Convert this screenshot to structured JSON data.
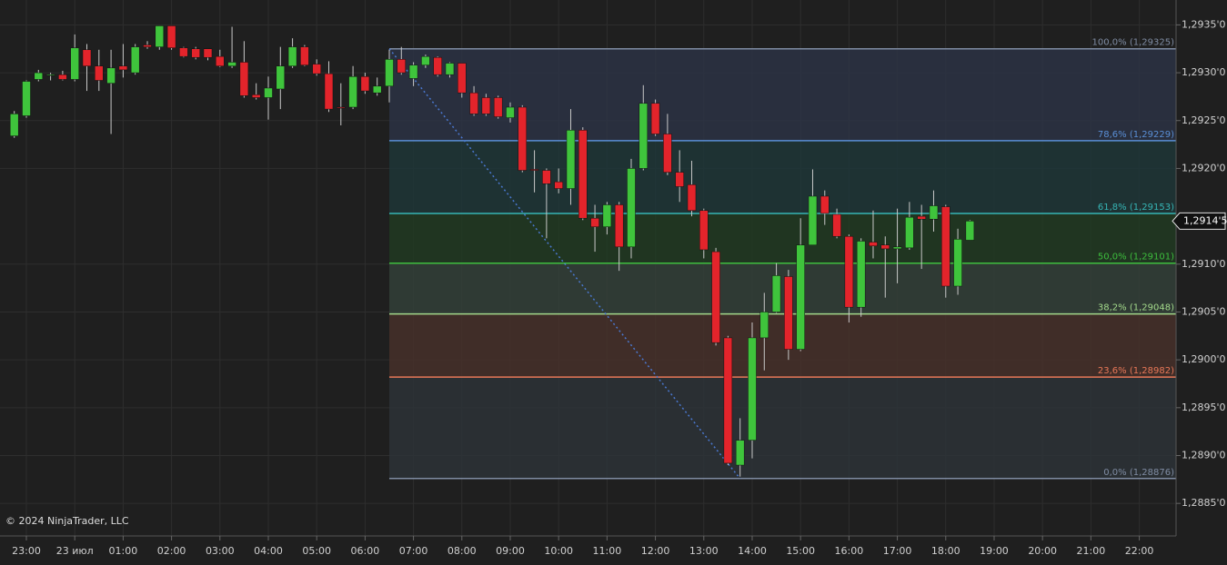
{
  "chart_data": {
    "type": "candlestick",
    "watermark": "© 2024 NinjaTrader, LLC",
    "x": [
      22.75,
      23,
      23.25,
      23.5,
      23.75,
      24,
      24.25,
      24.5,
      24.75,
      25,
      25.25,
      25.5,
      25.75,
      26,
      26.25,
      26.5,
      26.75,
      27,
      27.25,
      27.5,
      27.75,
      28,
      28.25,
      28.5,
      28.75,
      29,
      29.25,
      29.5,
      29.75,
      30,
      30.25,
      30.5,
      30.75,
      31,
      31.25,
      31.5,
      31.75,
      32,
      32.25,
      32.5,
      32.75,
      33,
      33.25,
      33.5,
      33.75,
      34,
      34.25,
      34.5,
      34.75,
      35,
      35.25,
      35.5,
      35.75,
      36,
      36.25,
      36.5,
      36.75,
      37,
      37.25,
      37.5,
      37.75,
      38,
      38.25,
      38.5,
      38.75,
      39,
      39.25,
      39.5,
      39.75,
      40,
      40.25,
      40.5,
      40.75,
      41,
      41.25,
      41.5,
      41.75,
      42,
      42.25,
      42.5
    ],
    "open": [
      1.29234,
      1.29255,
      1.29293,
      1.29297,
      1.29298,
      1.29293,
      1.29324,
      1.29307,
      1.29289,
      1.29307,
      1.293,
      1.29329,
      1.29327,
      1.29349,
      1.29326,
      1.29325,
      1.29325,
      1.29317,
      1.29307,
      1.29311,
      1.29277,
      1.29274,
      1.29283,
      1.29307,
      1.29327,
      1.29309,
      1.29299,
      1.29264,
      1.29264,
      1.29296,
      1.29279,
      1.29286,
      1.29314,
      1.29294,
      1.29308,
      1.29316,
      1.29298,
      1.2931,
      1.29279,
      1.29274,
      1.29274,
      1.29253,
      1.29264,
      1.29199,
      1.29198,
      1.29186,
      1.29179,
      1.2924,
      1.29148,
      1.29139,
      1.29162,
      1.29118,
      1.292,
      1.29268,
      1.29236,
      1.29196,
      1.29183,
      1.29156,
      1.29113,
      1.29023,
      1.2889,
      1.28916,
      1.29023,
      1.2905,
      1.29087,
      1.29011,
      1.2912,
      1.29171,
      1.29152,
      1.29129,
      1.29055,
      1.29123,
      1.2912,
      1.29116,
      1.29117,
      1.2915,
      1.29147,
      1.2916,
      1.29077,
      1.29125
    ],
    "high": [
      1.2926,
      1.29292,
      1.29303,
      1.293,
      1.29302,
      1.2934,
      1.2933,
      1.29324,
      1.29324,
      1.2933,
      1.2933,
      1.29333,
      1.29349,
      1.29349,
      1.29327,
      1.29327,
      1.29325,
      1.29324,
      1.29348,
      1.29333,
      1.29289,
      1.29296,
      1.29327,
      1.29336,
      1.29329,
      1.29314,
      1.29312,
      1.29289,
      1.29307,
      1.293,
      1.29295,
      1.29324,
      1.29327,
      1.29311,
      1.29319,
      1.29317,
      1.29311,
      1.2931,
      1.29286,
      1.29278,
      1.29276,
      1.29269,
      1.29266,
      1.29219,
      1.292,
      1.292,
      1.29262,
      1.29243,
      1.29162,
      1.29165,
      1.29165,
      1.2921,
      1.29287,
      1.29272,
      1.29257,
      1.29219,
      1.29208,
      1.29158,
      1.29117,
      1.29025,
      1.28939,
      1.29039,
      1.2907,
      1.29101,
      1.29094,
      1.29148,
      1.29199,
      1.29177,
      1.29158,
      1.29131,
      1.29127,
      1.29156,
      1.29129,
      1.29158,
      1.29165,
      1.29162,
      1.29177,
      1.29162,
      1.29137,
      1.29146
    ],
    "low": [
      1.29232,
      1.29253,
      1.29291,
      1.29292,
      1.29292,
      1.29291,
      1.29281,
      1.29281,
      1.29236,
      1.29295,
      1.29298,
      1.29325,
      1.29324,
      1.29324,
      1.29316,
      1.29314,
      1.29313,
      1.29306,
      1.29305,
      1.29274,
      1.29272,
      1.29251,
      1.29262,
      1.29305,
      1.29307,
      1.29297,
      1.29259,
      1.29245,
      1.29262,
      1.29278,
      1.29276,
      1.29269,
      1.29298,
      1.29286,
      1.29305,
      1.29296,
      1.29295,
      1.29274,
      1.29255,
      1.29255,
      1.29252,
      1.29248,
      1.29196,
      1.29175,
      1.29127,
      1.29174,
      1.29162,
      1.29146,
      1.29113,
      1.29131,
      1.29093,
      1.29106,
      1.29198,
      1.29234,
      1.29193,
      1.29165,
      1.2915,
      1.29106,
      1.29015,
      1.2889,
      1.28878,
      1.28897,
      1.28989,
      1.29049,
      1.29,
      1.29009,
      1.2912,
      1.29141,
      1.29127,
      1.29039,
      1.29045,
      1.29106,
      1.29065,
      1.2908,
      1.29115,
      1.29095,
      1.29134,
      1.29065,
      1.29068,
      1.29125
    ],
    "close": [
      1.29257,
      1.29291,
      1.293,
      1.29298,
      1.29293,
      1.29326,
      1.29307,
      1.29292,
      1.29305,
      1.29303,
      1.29327,
      1.29327,
      1.29349,
      1.29326,
      1.29317,
      1.29316,
      1.29316,
      1.29307,
      1.29311,
      1.29276,
      1.29274,
      1.29284,
      1.29307,
      1.29327,
      1.29308,
      1.29299,
      1.29262,
      1.29263,
      1.29296,
      1.29281,
      1.29286,
      1.29314,
      1.293,
      1.29308,
      1.29317,
      1.29298,
      1.2931,
      1.29279,
      1.29257,
      1.29257,
      1.29254,
      1.29264,
      1.29198,
      1.29198,
      1.29184,
      1.29179,
      1.2924,
      1.29148,
      1.29139,
      1.29162,
      1.29118,
      1.292,
      1.29268,
      1.29236,
      1.29196,
      1.29181,
      1.29156,
      1.29115,
      1.29018,
      1.28892,
      1.28916,
      1.29023,
      1.2905,
      1.29088,
      1.29011,
      1.2912,
      1.29171,
      1.29153,
      1.29129,
      1.29055,
      1.29124,
      1.29119,
      1.29116,
      1.29118,
      1.29149,
      1.29147,
      1.29161,
      1.29077,
      1.29126,
      1.29145
    ],
    "up_color": "#3fc43c",
    "down_color": "#e3242b",
    "xlim": [
      22.455,
      46.76
    ],
    "ylim": [
      1.28816,
      1.29376
    ],
    "xticks": [
      {
        "value": 23,
        "label": "23:00"
      },
      {
        "value": 24,
        "label": "23 июл"
      },
      {
        "value": 25,
        "label": "01:00"
      },
      {
        "value": 26,
        "label": "02:00"
      },
      {
        "value": 27,
        "label": "03:00"
      },
      {
        "value": 28,
        "label": "04:00"
      },
      {
        "value": 29,
        "label": "05:00"
      },
      {
        "value": 30,
        "label": "06:00"
      },
      {
        "value": 31,
        "label": "07:00"
      },
      {
        "value": 32,
        "label": "08:00"
      },
      {
        "value": 33,
        "label": "09:00"
      },
      {
        "value": 34,
        "label": "10:00"
      },
      {
        "value": 35,
        "label": "11:00"
      },
      {
        "value": 36,
        "label": "12:00"
      },
      {
        "value": 37,
        "label": "13:00"
      },
      {
        "value": 38,
        "label": "14:00"
      },
      {
        "value": 39,
        "label": "15:00"
      },
      {
        "value": 40,
        "label": "16:00"
      },
      {
        "value": 41,
        "label": "17:00"
      },
      {
        "value": 42,
        "label": "18:00"
      },
      {
        "value": 43,
        "label": "19:00"
      },
      {
        "value": 44,
        "label": "20:00"
      },
      {
        "value": 45,
        "label": "21:00"
      },
      {
        "value": 46,
        "label": "22:00"
      }
    ],
    "yticks": [
      {
        "value": 1.2935,
        "label": "1,2935'0"
      },
      {
        "value": 1.293,
        "label": "1,2930'0"
      },
      {
        "value": 1.2925,
        "label": "1,2925'0"
      },
      {
        "value": 1.292,
        "label": "1,2920'0"
      },
      {
        "value": 1.291,
        "label": "1,2910'0"
      },
      {
        "value": 1.2905,
        "label": "1,2905'0"
      },
      {
        "value": 1.29,
        "label": "1,2900'0"
      },
      {
        "value": 1.2895,
        "label": "1,2895'0"
      },
      {
        "value": 1.289,
        "label": "1,2890'0"
      },
      {
        "value": 1.2885,
        "label": "1,2885'0"
      }
    ],
    "grid": true,
    "fib_x": [
      30.5,
      37.75
    ],
    "fib_levels": [
      {
        "value": 1.29325,
        "label": "100,0% (1,29325)",
        "color": "#7f8ca3",
        "fill": "#2b3244"
      },
      {
        "value": 1.29229,
        "label": "78,6% (1,29229)",
        "color": "#5a8fd6",
        "fill": "#1f3637"
      },
      {
        "value": 1.29153,
        "label": "61,8% (1,29153)",
        "color": "#36b5b5",
        "fill": "#213a22"
      },
      {
        "value": 1.29101,
        "label": "50,0% (1,29101)",
        "color": "#3dbd3d",
        "fill": "#333f38"
      },
      {
        "value": 1.29048,
        "label": "38,2% (1,29048)",
        "color": "#a3d98b",
        "fill": "#47302a"
      },
      {
        "value": 1.28982,
        "label": "23,6% (1,28982)",
        "color": "#e87858",
        "fill": "#2d3237"
      },
      {
        "value": 1.28876,
        "label": "0,0% (1,28876)",
        "color": "#7f8ca3"
      }
    ],
    "last_price": {
      "value": 1.29145,
      "label": "1,2914'5"
    }
  }
}
